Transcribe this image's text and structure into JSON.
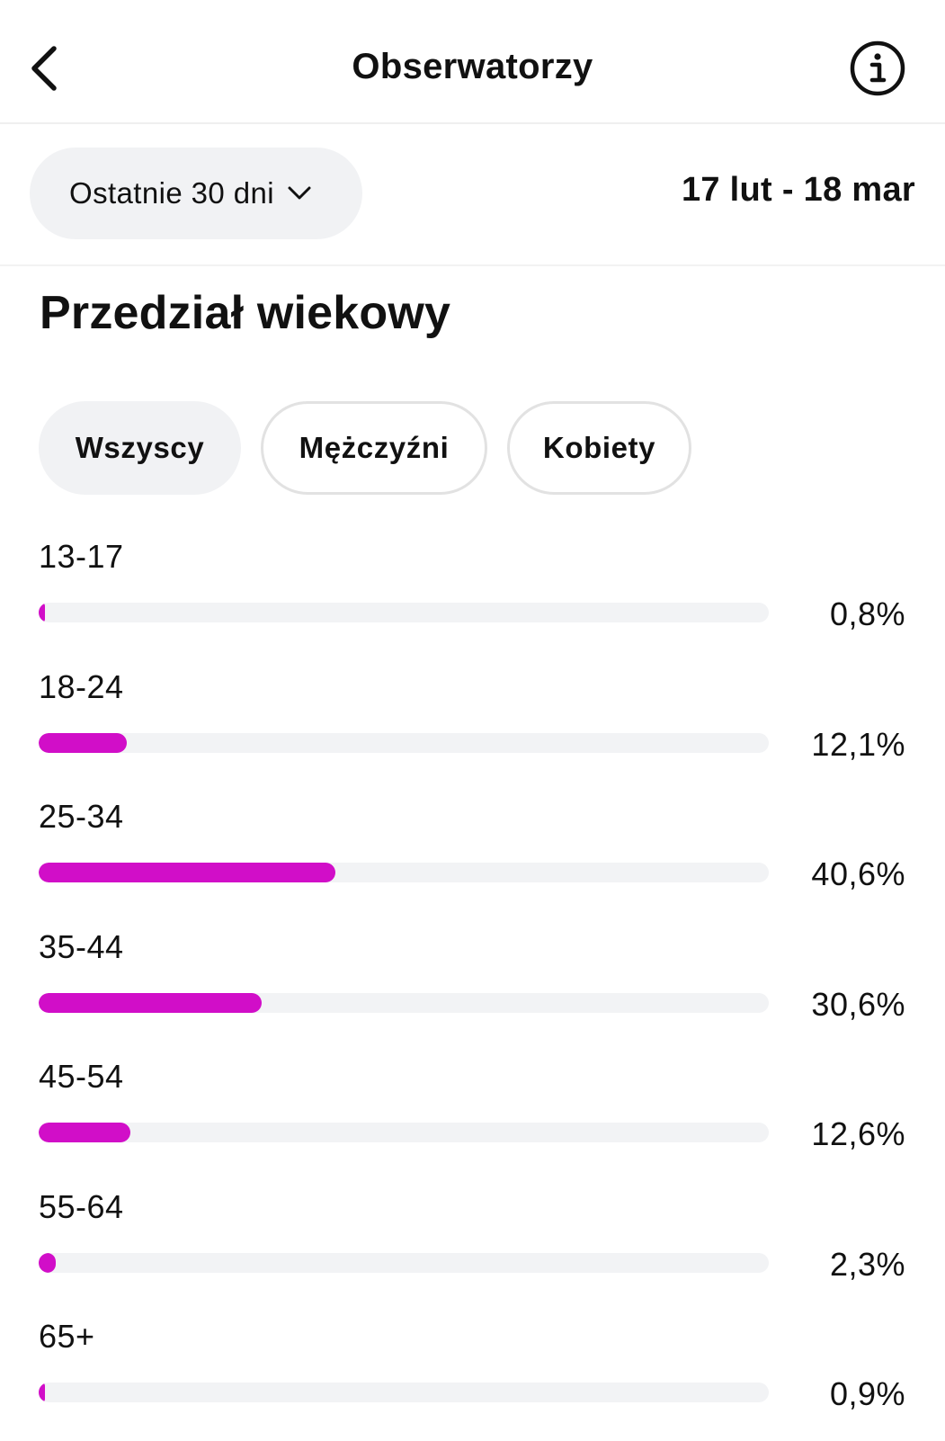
{
  "header": {
    "title": "Obserwatorzy",
    "back_icon": "chevron-left-icon",
    "info_icon": "info-circle-icon"
  },
  "range": {
    "selected": "Ostatnie 30 dni",
    "dates": "17 lut - 18 mar"
  },
  "section": {
    "title": "Przedział wiekowy"
  },
  "filters": [
    {
      "label": "Wszyscy",
      "active": true
    },
    {
      "label": "Mężczyźni",
      "active": false
    },
    {
      "label": "Kobiety",
      "active": false
    }
  ],
  "colors": {
    "accent": "#d10ec8",
    "track": "#f2f3f5"
  },
  "age_groups": [
    {
      "label": "13-17",
      "percent_text": "0,8%",
      "value": 0.8
    },
    {
      "label": "18-24",
      "percent_text": "12,1%",
      "value": 12.1
    },
    {
      "label": "25-34",
      "percent_text": "40,6%",
      "value": 40.6
    },
    {
      "label": "35-44",
      "percent_text": "30,6%",
      "value": 30.6
    },
    {
      "label": "45-54",
      "percent_text": "12,6%",
      "value": 12.6
    },
    {
      "label": "55-64",
      "percent_text": "2,3%",
      "value": 2.3
    },
    {
      "label": "65+",
      "percent_text": "0,9%",
      "value": 0.9
    }
  ]
}
